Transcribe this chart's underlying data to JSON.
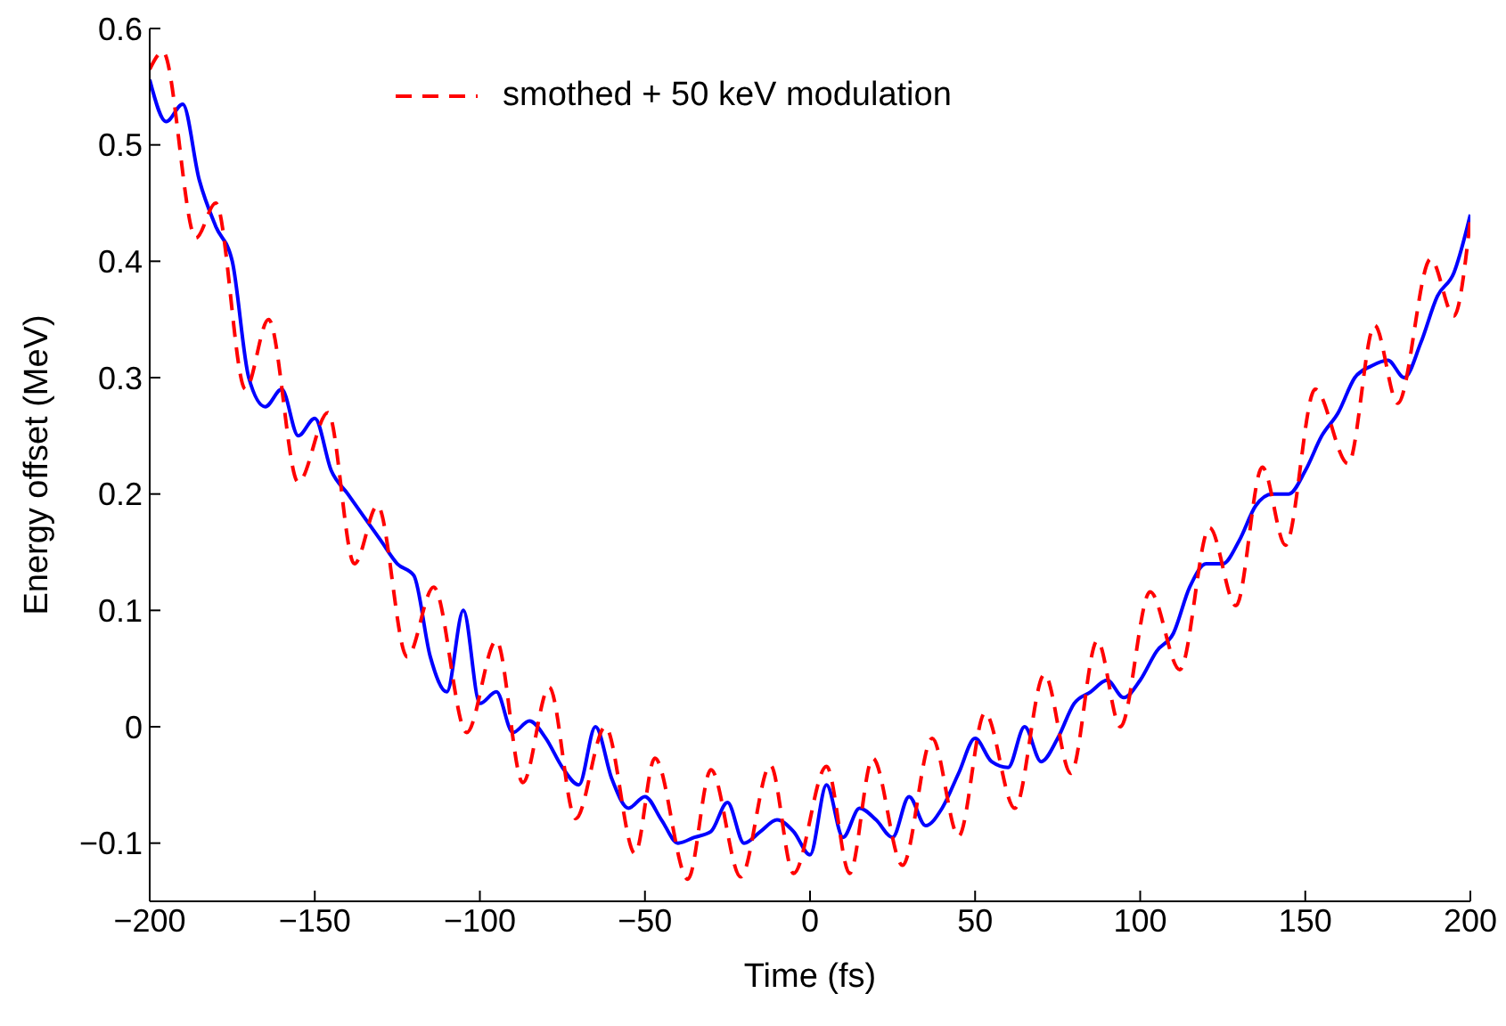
{
  "chart_data": {
    "type": "line",
    "xlabel": "Time (fs)",
    "ylabel": "Energy offset (MeV)",
    "xlim": [
      -200,
      200
    ],
    "ylim": [
      -0.15,
      0.6
    ],
    "xticks": [
      -200,
      -150,
      -100,
      -50,
      0,
      50,
      100,
      150,
      200
    ],
    "yticks": [
      -0.1,
      0,
      0.1,
      0.2,
      0.3,
      0.4,
      0.5,
      0.6
    ],
    "grid": false,
    "legend": "top",
    "marker": "none",
    "series": [
      {
        "color": "#0000ff",
        "line_style": "solid",
        "x": [
          -200,
          -195,
          -190,
          -185,
          -180,
          -175,
          -170,
          -165,
          -160,
          -155,
          -150,
          -145,
          -140,
          -135,
          -130,
          -125,
          -120,
          -115,
          -110,
          -105,
          -100,
          -95,
          -90,
          -85,
          -80,
          -75,
          -70,
          -65,
          -60,
          -55,
          -50,
          -45,
          -40,
          -35,
          -30,
          -25,
          -20,
          -15,
          -10,
          -5,
          0,
          5,
          10,
          15,
          20,
          25,
          30,
          35,
          40,
          45,
          50,
          55,
          60,
          65,
          70,
          75,
          80,
          85,
          90,
          95,
          100,
          105,
          110,
          115,
          120,
          125,
          130,
          135,
          140,
          145,
          150,
          155,
          160,
          165,
          170,
          175,
          180,
          185,
          190,
          195,
          200
        ],
        "values": [
          0.556,
          0.52,
          0.535,
          0.47,
          0.43,
          0.4,
          0.3,
          0.275,
          0.29,
          0.25,
          0.265,
          0.22,
          0.2,
          0.18,
          0.16,
          0.14,
          0.13,
          0.06,
          0.03,
          0.1,
          0.02,
          0.03,
          -0.005,
          0.005,
          -0.01,
          -0.035,
          -0.05,
          0.0,
          -0.045,
          -0.07,
          -0.06,
          -0.08,
          -0.1,
          -0.095,
          -0.09,
          -0.065,
          -0.1,
          -0.09,
          -0.08,
          -0.09,
          -0.11,
          -0.05,
          -0.095,
          -0.07,
          -0.08,
          -0.095,
          -0.06,
          -0.085,
          -0.07,
          -0.04,
          -0.01,
          -0.03,
          -0.035,
          0.0,
          -0.03,
          -0.01,
          0.02,
          0.03,
          0.04,
          0.025,
          0.04,
          0.065,
          0.08,
          0.12,
          0.14,
          0.14,
          0.16,
          0.19,
          0.2,
          0.2,
          0.22,
          0.25,
          0.27,
          0.3,
          0.31,
          0.315,
          0.3,
          0.33,
          0.37,
          0.39,
          0.44
        ]
      },
      {
        "name": "smothed + 50 keV modulation",
        "color": "#ff0000",
        "line_style": "dashed",
        "x": [
          -200,
          -196,
          -186,
          -180,
          -171,
          -164,
          -155,
          -146,
          -138,
          -131,
          -122,
          -114,
          -104,
          -95,
          -87,
          -79,
          -71,
          -62,
          -53,
          -47,
          -37,
          -30,
          -21,
          -12,
          -5,
          5,
          12,
          19,
          28,
          37,
          45,
          53,
          62,
          71,
          79,
          87,
          94,
          103,
          112,
          121,
          129,
          137,
          144,
          153,
          163,
          171,
          178,
          188,
          195,
          200
        ],
        "values": [
          0.565,
          0.58,
          0.42,
          0.45,
          0.29,
          0.35,
          0.21,
          0.27,
          0.14,
          0.19,
          0.06,
          0.12,
          -0.005,
          0.074,
          -0.048,
          0.034,
          -0.079,
          0.0,
          -0.109,
          -0.027,
          -0.131,
          -0.037,
          -0.129,
          -0.033,
          -0.126,
          -0.034,
          -0.126,
          -0.027,
          -0.119,
          -0.01,
          -0.094,
          0.012,
          -0.07,
          0.045,
          -0.04,
          0.074,
          0.0,
          0.116,
          0.049,
          0.171,
          0.104,
          0.223,
          0.156,
          0.29,
          0.226,
          0.345,
          0.278,
          0.402,
          0.353,
          0.436
        ]
      }
    ]
  }
}
